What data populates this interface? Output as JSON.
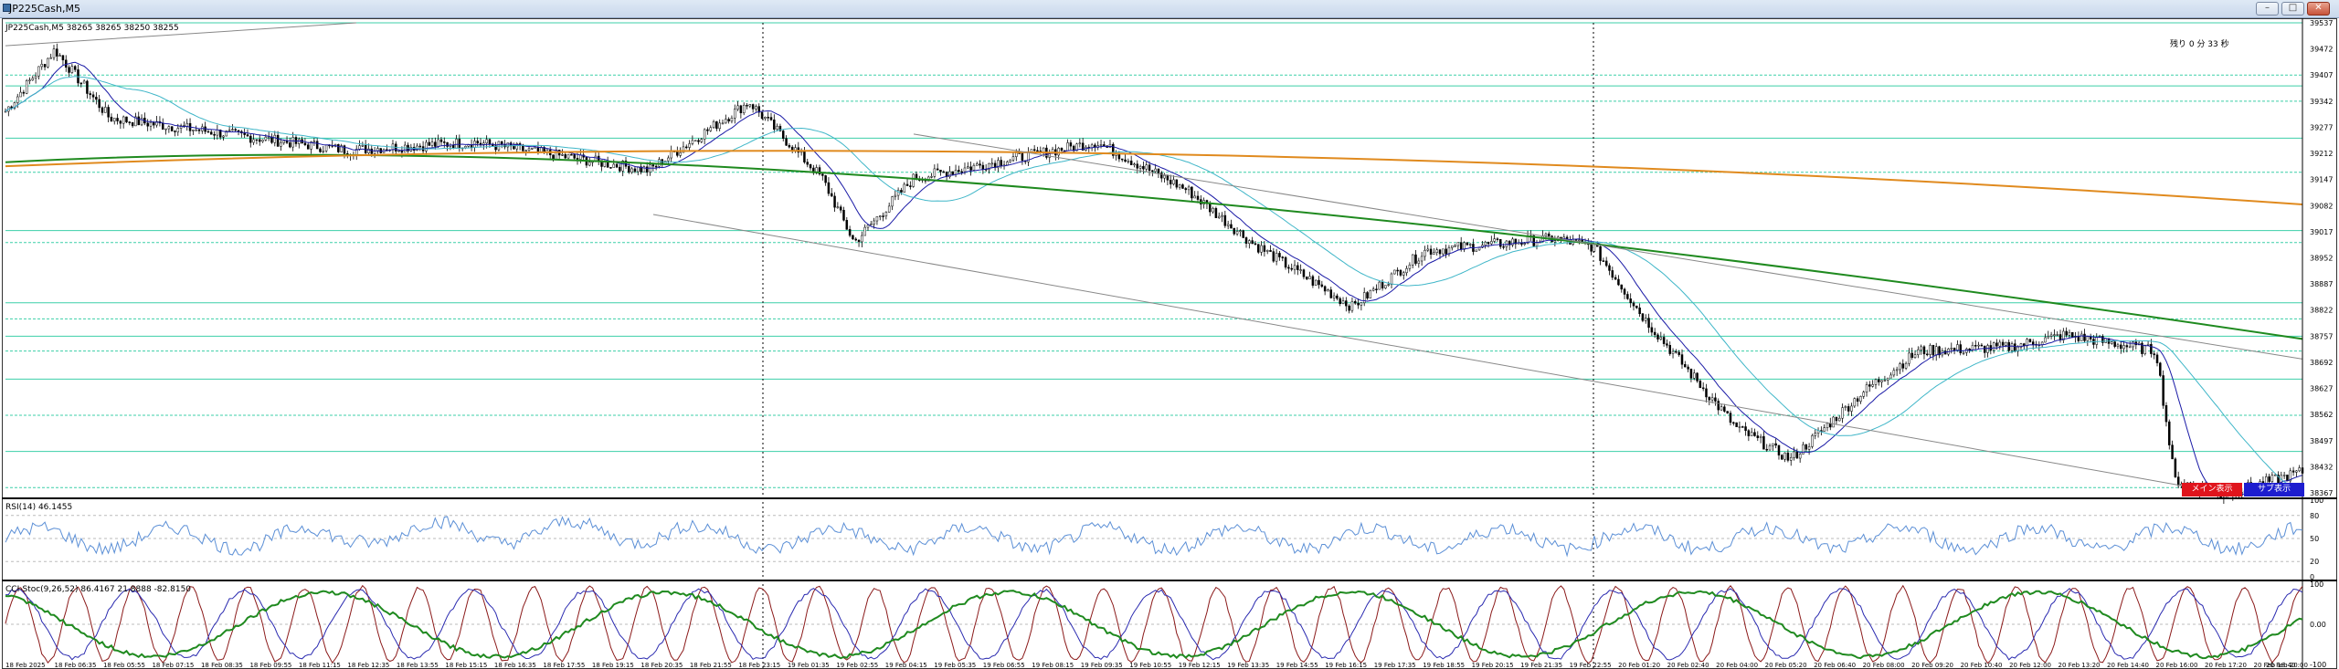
{
  "window": {
    "title": "JP225Cash,M5"
  },
  "main": {
    "symbol_label": "JP225Cash,M5 38265 38265 38250 38255",
    "countdown": "残り 0 分 33 秒",
    "price_ticks": [
      "39537",
      "39472",
      "39407",
      "39342",
      "39277",
      "39212",
      "39147",
      "39082",
      "39017",
      "38952",
      "38887",
      "38822",
      "38757",
      "38692",
      "38627",
      "38562",
      "38497",
      "38432",
      "38367"
    ],
    "buttons": {
      "main_display": "メイン表示",
      "sub_display": "サブ表示"
    }
  },
  "rsi": {
    "label": "RSI(14) 46.1455",
    "ticks": [
      "100",
      "80",
      "50",
      "20",
      "0"
    ]
  },
  "stoch": {
    "label": "CCI-Stoc(9,26,52) 86.4167 21.8888 -82.8150",
    "ticks": [
      "100",
      "0.00",
      "-100"
    ]
  },
  "time_axis": [
    "18 Feb 2025",
    "18 Feb 06:35",
    "18 Feb 05:55",
    "18 Feb 07:15",
    "18 Feb 08:35",
    "18 Feb 09:55",
    "18 Feb 11:15",
    "18 Feb 12:35",
    "18 Feb 13:55",
    "18 Feb 15:15",
    "18 Feb 16:35",
    "18 Feb 17:55",
    "18 Feb 19:15",
    "18 Feb 20:35",
    "18 Feb 21:55",
    "18 Feb 23:15",
    "19 Feb 01:35",
    "19 Feb 02:55",
    "19 Feb 04:15",
    "19 Feb 05:35",
    "19 Feb 06:55",
    "19 Feb 08:15",
    "19 Feb 09:35",
    "19 Feb 10:55",
    "19 Feb 12:15",
    "19 Feb 13:35",
    "19 Feb 14:55",
    "19 Feb 16:15",
    "19 Feb 17:35",
    "19 Feb 18:55",
    "19 Feb 20:15",
    "19 Feb 21:35",
    "19 Feb 22:55",
    "20 Feb 01:20",
    "20 Feb 02:40",
    "20 Feb 04:00",
    "20 Feb 05:20",
    "20 Feb 06:40",
    "20 Feb 08:00",
    "20 Feb 09:20",
    "20 Feb 10:40",
    "20 Feb 12:00",
    "20 Feb 13:20",
    "20 Feb 14:40",
    "20 Feb 16:00",
    "20 Feb 17:20",
    "20 Feb 18:40",
    "20 Feb 20:00"
  ],
  "colors": {
    "sma_fast": "#1a1aa6",
    "sma_mid": "#3fb6c8",
    "sma_slow": "#1f8a1f",
    "sma_long": "#e08a1e",
    "level": "#3ccfa8",
    "rsi": "#5b8fd6",
    "stoch_k": "#8b1a1a",
    "stoch_d": "#2a2ab0",
    "stoch_s": "#1f8a1f",
    "btn_main": "#e0141c",
    "btn_sub": "#1d1dcf"
  }
}
